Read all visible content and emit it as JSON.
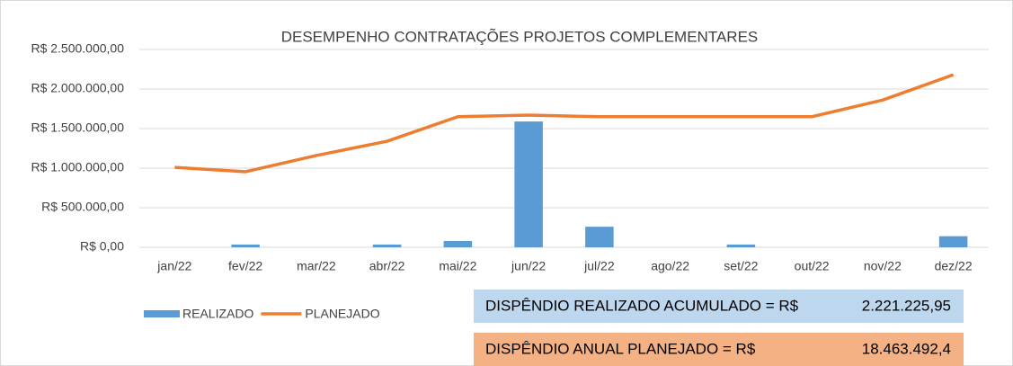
{
  "chart_data": {
    "type": "combo",
    "title": "DESEMPENHO CONTRATAÇÕES PROJETOS COMPLEMENTARES",
    "categories": [
      "jan/22",
      "fev/22",
      "mar/22",
      "abr/22",
      "mai/22",
      "jun/22",
      "jul/22",
      "ago/22",
      "set/22",
      "out/22",
      "nov/22",
      "dez/22"
    ],
    "series": [
      {
        "name": "REALIZADO",
        "type": "bar",
        "color": "#5b9bd5",
        "values": [
          0,
          35000,
          0,
          35000,
          80000,
          1590000,
          260000,
          0,
          35000,
          0,
          0,
          140000
        ]
      },
      {
        "name": "PLANEJADO",
        "type": "line",
        "color": "#ed7d31",
        "values": [
          1010000,
          955000,
          1160000,
          1340000,
          1650000,
          1670000,
          1650000,
          1650000,
          1650000,
          1650000,
          1860000,
          2180000
        ]
      }
    ],
    "ylim": [
      0,
      2500000
    ],
    "yticks": [
      {
        "value": 0,
        "label": "R$ 0,00"
      },
      {
        "value": 500000,
        "label": "R$ 500.000,00"
      },
      {
        "value": 1000000,
        "label": "R$ 1.000.000,00"
      },
      {
        "value": 1500000,
        "label": "R$ 1.500.000,00"
      },
      {
        "value": 2000000,
        "label": "R$ 2.000.000,00"
      },
      {
        "value": 2500000,
        "label": "R$ 2.500.000,00"
      }
    ],
    "grid": true,
    "legend": "bottom-left",
    "summary": [
      {
        "label": "DISPÊNDIO REALIZADO ACUMULADO = R$",
        "value": "2.221.225,95",
        "color": "#bdd7ee"
      },
      {
        "label": "DISPÊNDIO ANUAL PLANEJADO = R$",
        "value": "18.463.492,4",
        "color": "#f4b183"
      }
    ]
  }
}
